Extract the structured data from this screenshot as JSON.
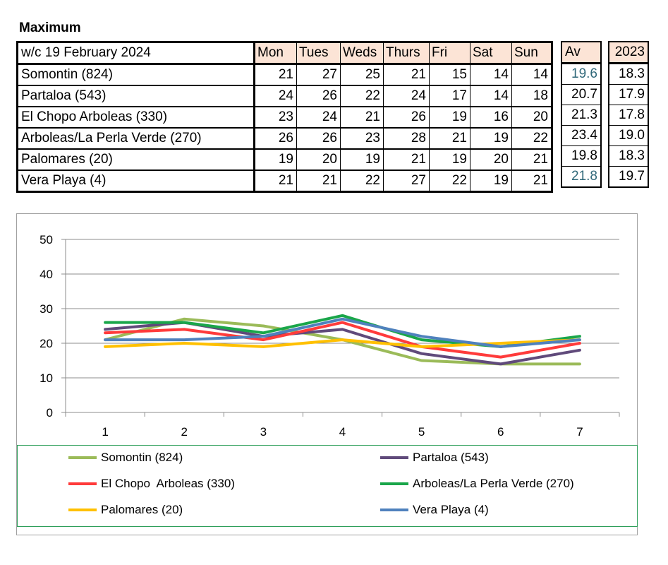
{
  "heading": "Maximum",
  "table": {
    "week_label": "w/c 19 February 2024",
    "days": [
      "Mon",
      "Tues",
      "Weds",
      "Thurs",
      "Fri",
      "Sat",
      "Sun"
    ],
    "av_header": "Av",
    "year_header": "2023",
    "rows": [
      {
        "name": "Somontin (824)",
        "values": [
          "21",
          "27",
          "25",
          "21",
          "15",
          "14",
          "14"
        ],
        "av": "19.6",
        "y2023": "18.3"
      },
      {
        "name": "Partaloa (543)",
        "values": [
          "24",
          "26",
          "22",
          "24",
          "17",
          "14",
          "18"
        ],
        "av": "20.7",
        "y2023": "17.9"
      },
      {
        "name": "El Chopo  Arboleas (330)",
        "values": [
          "23",
          "24",
          "21",
          "26",
          "19",
          "16",
          "20"
        ],
        "av": "21.3",
        "y2023": "17.8"
      },
      {
        "name": "Arboleas/La Perla Verde (270)",
        "values": [
          "26",
          "26",
          "23",
          "28",
          "21",
          "19",
          "22"
        ],
        "av": "23.4",
        "y2023": "19.0"
      },
      {
        "name": "Palomares (20)",
        "values": [
          "19",
          "20",
          "19",
          "21",
          "19",
          "20",
          "21"
        ],
        "av": "19.8",
        "y2023": "18.3"
      },
      {
        "name": "Vera Playa (4)",
        "values": [
          "21",
          "21",
          "22",
          "27",
          "22",
          "19",
          "21"
        ],
        "av": "21.8",
        "y2023": "19.7"
      }
    ]
  },
  "chart_data": {
    "type": "line",
    "title": "",
    "xlabel": "",
    "ylabel": "",
    "x": [
      1,
      2,
      3,
      4,
      5,
      6,
      7
    ],
    "ylim": [
      0,
      50
    ],
    "yticks": [
      0,
      10,
      20,
      30,
      40,
      50
    ],
    "grid": "horizontal",
    "legend_position": "bottom",
    "series": [
      {
        "name": "Somontin (824)",
        "color": "#9bbb59",
        "values": [
          21,
          27,
          25,
          21,
          15,
          14,
          14
        ]
      },
      {
        "name": "Partaloa (543)",
        "color": "#604a7b",
        "values": [
          24,
          26,
          22,
          24,
          17,
          14,
          18
        ]
      },
      {
        "name": "El Chopo  Arboleas (330)",
        "color": "#ff3b3b",
        "values": [
          23,
          24,
          21,
          26,
          19,
          16,
          20
        ]
      },
      {
        "name": "Arboleas/La Perla Verde (270)",
        "color": "#1aa64a",
        "values": [
          26,
          26,
          23,
          28,
          21,
          19,
          22
        ]
      },
      {
        "name": "Palomares (20)",
        "color": "#ffc000",
        "values": [
          19,
          20,
          19,
          21,
          19,
          20,
          21
        ]
      },
      {
        "name": "Vera Playa (4)",
        "color": "#4f81bd",
        "values": [
          21,
          21,
          22,
          27,
          22,
          19,
          21
        ]
      }
    ]
  }
}
